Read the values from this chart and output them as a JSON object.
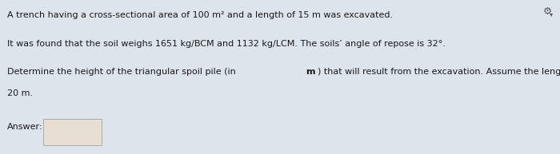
{
  "bg_color": "#dce4ec",
  "answer_box_color": "#e8dfd4",
  "gear_color": "#555555",
  "line1": "A trench having a cross-sectional area of 100 m² and a length of 15 m was excavated.",
  "line2": "It was found that the soil weighs 1651 kg/BCM and 1132 kg/LCM. The soils’ angle of repose is 32°.",
  "line3a": "Determine the height of the triangular spoil pile (in ",
  "line3b": "m",
  "line3c": ") that will result from the excavation. Assume the length of the spoil pile is",
  "line4": "20 m.",
  "answer_label": "Answer:",
  "font_size": 8.0,
  "text_color": "#1a1a1a"
}
